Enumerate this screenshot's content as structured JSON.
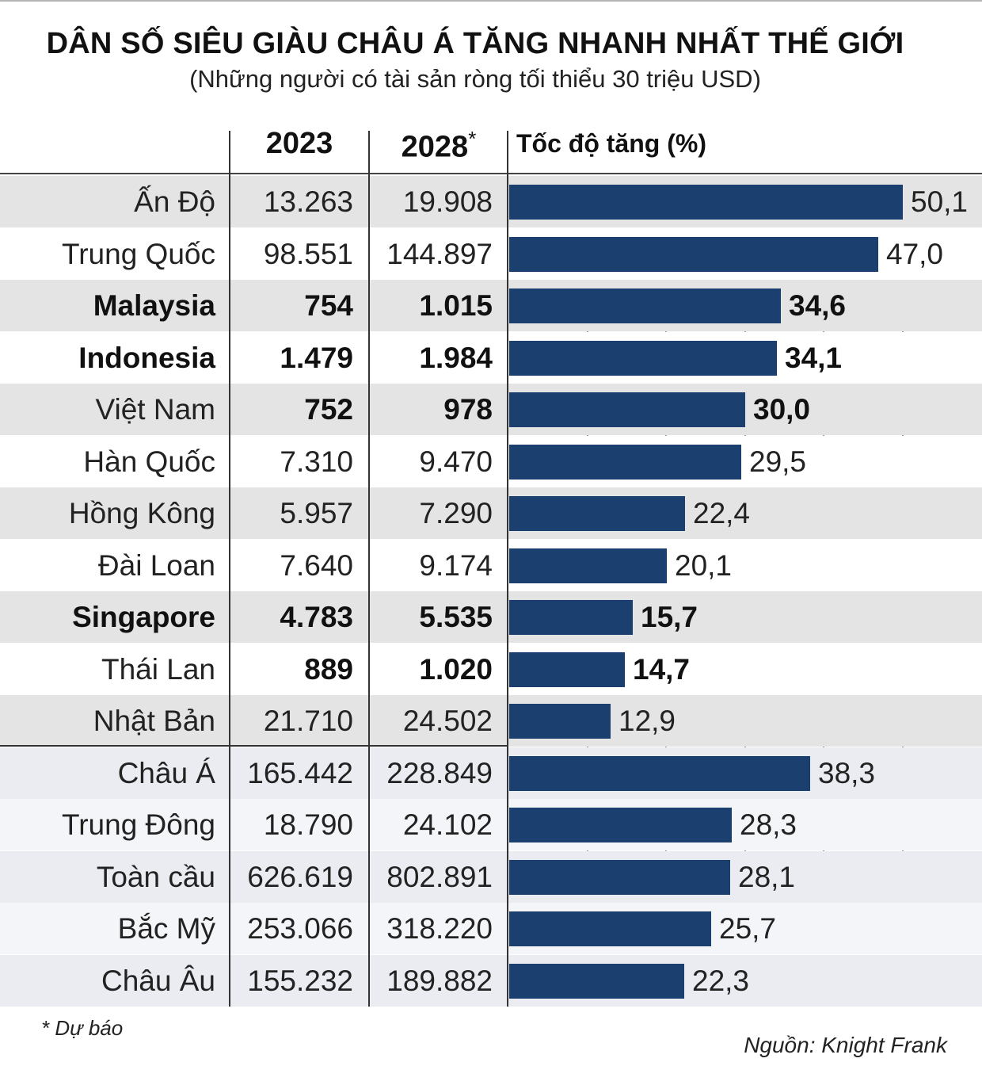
{
  "title": "DÂN SỐ SIÊU GIÀU CHÂU Á TĂNG NHANH NHẤT THẾ GIỚI",
  "subtitle": "(Những người có tài sản ròng tối thiểu 30 triệu USD)",
  "footnote": "* Dự báo",
  "source": "Nguồn: Knight Frank",
  "colors": {
    "bar": "#1b3f6e",
    "band": "#e4e4e4",
    "band_region": "#eaecf1",
    "region_white": "#f4f5f8"
  },
  "chart_data": {
    "type": "table",
    "columns": [
      "",
      "2023",
      "2028*",
      "Tốc độ tăng (%)"
    ],
    "header_2028_year": "2028",
    "header_2028_mark": "*",
    "growth_axis": {
      "min": 0,
      "max": 55,
      "grid": true
    },
    "rows": [
      {
        "name": "Ấn Độ",
        "v2023": "13.263",
        "v2028": "19.908",
        "growth": 50.1,
        "growth_label": "50,1",
        "bold": false,
        "group": "country"
      },
      {
        "name": "Trung Quốc",
        "v2023": "98.551",
        "v2028": "144.897",
        "growth": 47.0,
        "growth_label": "47,0",
        "bold": false,
        "group": "country"
      },
      {
        "name": "Malaysia",
        "v2023": "754",
        "v2028": "1.015",
        "growth": 34.6,
        "growth_label": "34,6",
        "bold": true,
        "group": "country"
      },
      {
        "name": "Indonesia",
        "v2023": "1.479",
        "v2028": "1.984",
        "growth": 34.1,
        "growth_label": "34,1",
        "bold": true,
        "group": "country"
      },
      {
        "name": "Việt Nam",
        "v2023": "752",
        "v2028": "978",
        "growth": 30.0,
        "growth_label": "30,0",
        "bold": true,
        "name_bold": false,
        "group": "country"
      },
      {
        "name": "Hàn Quốc",
        "v2023": "7.310",
        "v2028": "9.470",
        "growth": 29.5,
        "growth_label": "29,5",
        "bold": false,
        "group": "country"
      },
      {
        "name": "Hồng Kông",
        "v2023": "5.957",
        "v2028": "7.290",
        "growth": 22.4,
        "growth_label": "22,4",
        "bold": false,
        "group": "country"
      },
      {
        "name": "Đài Loan",
        "v2023": "7.640",
        "v2028": "9.174",
        "growth": 20.1,
        "growth_label": "20,1",
        "bold": false,
        "group": "country"
      },
      {
        "name": "Singapore",
        "v2023": "4.783",
        "v2028": "5.535",
        "growth": 15.7,
        "growth_label": "15,7",
        "bold": true,
        "group": "country"
      },
      {
        "name": "Thái Lan",
        "v2023": "889",
        "v2028": "1.020",
        "growth": 14.7,
        "growth_label": "14,7",
        "bold": true,
        "name_bold": false,
        "group": "country"
      },
      {
        "name": "Nhật Bản",
        "v2023": "21.710",
        "v2028": "24.502",
        "growth": 12.9,
        "growth_label": "12,9",
        "bold": false,
        "group": "country"
      },
      {
        "name": "Châu Á",
        "v2023": "165.442",
        "v2028": "228.849",
        "growth": 38.3,
        "growth_label": "38,3",
        "bold": false,
        "group": "region"
      },
      {
        "name": "Trung Đông",
        "v2023": "18.790",
        "v2028": "24.102",
        "growth": 28.3,
        "growth_label": "28,3",
        "bold": false,
        "group": "region"
      },
      {
        "name": "Toàn cầu",
        "v2023": "626.619",
        "v2028": "802.891",
        "growth": 28.1,
        "growth_label": "28,1",
        "bold": false,
        "group": "region"
      },
      {
        "name": "Bắc Mỹ",
        "v2023": "253.066",
        "v2028": "318.220",
        "growth": 25.7,
        "growth_label": "25,7",
        "bold": false,
        "group": "region"
      },
      {
        "name": "Châu Âu",
        "v2023": "155.232",
        "v2028": "189.882",
        "growth": 22.3,
        "growth_label": "22,3",
        "bold": false,
        "group": "region"
      }
    ]
  }
}
